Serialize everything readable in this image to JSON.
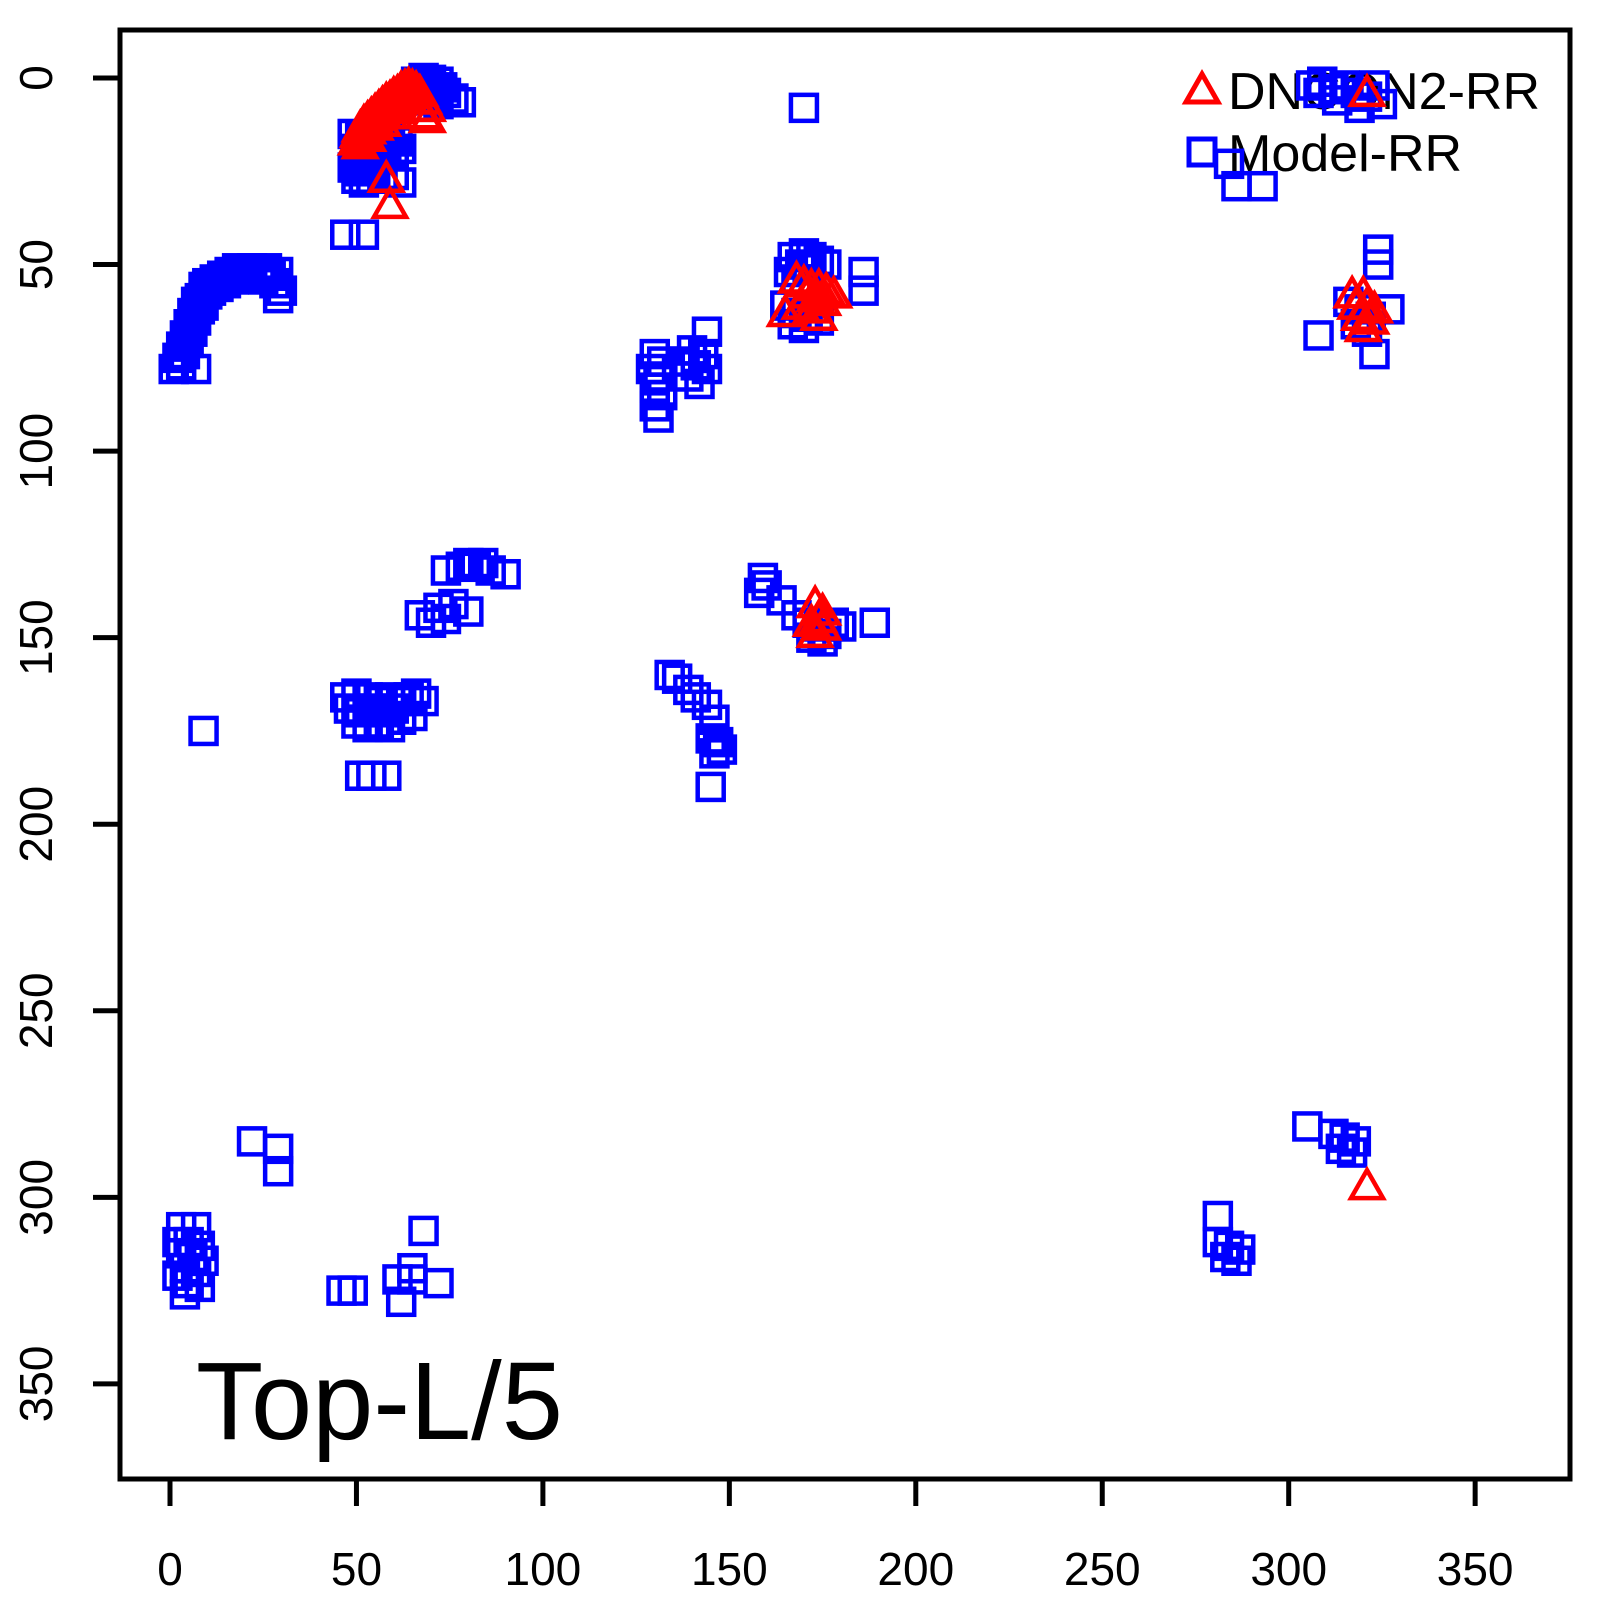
{
  "figure": {
    "background": "#FFFFFF",
    "axis_color": "#000000",
    "text_color": "#000000"
  },
  "chart_data": {
    "type": "scatter",
    "title": "",
    "xlabel": "",
    "ylabel": "",
    "grid": false,
    "x_ticks": [
      0,
      50,
      100,
      150,
      200,
      250,
      300,
      350
    ],
    "y_ticks": [
      0,
      50,
      100,
      150,
      200,
      250,
      300,
      350
    ],
    "xlim": [
      -13,
      375
    ],
    "ylim": [
      375,
      -13
    ],
    "y_axis_inverted": true,
    "annotation": {
      "text": "Top-L/5",
      "position": "bottom-left"
    },
    "legend": {
      "position": "top-right",
      "entries": [
        {
          "label": "DNCON2-RR",
          "marker": "open-triangle",
          "color": "#FF0000"
        },
        {
          "label": "Model-RR",
          "marker": "open-square",
          "color": "#0000FF"
        }
      ]
    },
    "series": [
      {
        "name": "Model-RR",
        "marker": "open-square",
        "color": "#0000FF",
        "marker_size_px": 26,
        "stroke_width_px": 4.5,
        "points": [
          [
            66,
            1
          ],
          [
            68,
            0
          ],
          [
            70,
            0.5
          ],
          [
            72,
            1
          ],
          [
            69,
            2
          ],
          [
            71,
            3
          ],
          [
            73,
            2.5
          ],
          [
            67,
            3.5
          ],
          [
            68,
            5
          ],
          [
            70,
            6
          ],
          [
            74,
            4
          ],
          [
            76,
            5.5
          ],
          [
            78,
            6.5
          ],
          [
            72,
            7
          ],
          [
            49,
            15
          ],
          [
            51,
            16
          ],
          [
            53,
            17
          ],
          [
            55,
            16
          ],
          [
            57,
            15
          ],
          [
            59,
            16
          ],
          [
            61,
            17
          ],
          [
            50,
            19
          ],
          [
            52,
            20
          ],
          [
            54,
            20
          ],
          [
            56,
            19
          ],
          [
            58,
            18
          ],
          [
            60,
            20
          ],
          [
            62,
            19
          ],
          [
            49,
            24
          ],
          [
            51,
            25
          ],
          [
            53,
            24
          ],
          [
            55,
            25
          ],
          [
            57,
            26
          ],
          [
            50,
            27
          ],
          [
            52,
            28
          ],
          [
            54,
            27
          ],
          [
            60,
            26
          ],
          [
            62,
            28
          ],
          [
            47,
            42
          ],
          [
            52,
            42
          ],
          [
            1,
            78
          ],
          [
            3,
            77
          ],
          [
            2,
            75
          ],
          [
            4,
            74
          ],
          [
            3,
            72
          ],
          [
            5,
            71
          ],
          [
            4,
            69
          ],
          [
            6,
            68
          ],
          [
            5,
            66
          ],
          [
            7,
            65
          ],
          [
            6,
            63
          ],
          [
            8,
            62
          ],
          [
            7,
            60
          ],
          [
            9,
            61
          ],
          [
            8,
            59
          ],
          [
            10,
            58
          ],
          [
            9,
            56
          ],
          [
            11,
            57
          ],
          [
            10,
            55
          ],
          [
            12,
            54
          ],
          [
            13,
            56
          ],
          [
            14,
            53
          ],
          [
            15,
            55
          ],
          [
            16,
            52
          ],
          [
            17,
            54
          ],
          [
            18,
            51
          ],
          [
            19,
            53
          ],
          [
            20,
            52
          ],
          [
            22,
            51
          ],
          [
            24,
            52
          ],
          [
            26,
            51
          ],
          [
            25,
            54
          ],
          [
            27,
            53
          ],
          [
            29,
            52
          ],
          [
            28,
            55
          ],
          [
            30,
            57
          ],
          [
            29,
            59
          ],
          [
            7,
            78
          ],
          [
            130,
            74
          ],
          [
            132,
            76
          ],
          [
            129,
            78
          ],
          [
            131,
            80
          ],
          [
            130,
            83
          ],
          [
            132,
            85
          ],
          [
            130,
            88
          ],
          [
            131,
            91
          ],
          [
            144,
            68
          ],
          [
            140,
            73
          ],
          [
            143,
            74
          ],
          [
            138,
            76
          ],
          [
            141,
            77
          ],
          [
            144,
            78
          ],
          [
            139,
            80
          ],
          [
            142,
            82
          ],
          [
            167,
            48
          ],
          [
            170,
            47
          ],
          [
            172,
            48
          ],
          [
            174,
            49
          ],
          [
            176,
            50
          ],
          [
            169,
            50
          ],
          [
            171,
            51
          ],
          [
            166,
            52
          ],
          [
            168,
            54
          ],
          [
            165,
            61
          ],
          [
            168,
            63
          ],
          [
            171,
            64
          ],
          [
            174,
            65
          ],
          [
            167,
            66
          ],
          [
            170,
            67
          ],
          [
            186,
            52
          ],
          [
            186,
            57
          ],
          [
            170,
            8
          ],
          [
            306,
            2
          ],
          [
            309,
            1
          ],
          [
            312,
            3
          ],
          [
            315,
            2
          ],
          [
            318,
            4
          ],
          [
            321,
            5
          ],
          [
            323,
            2
          ],
          [
            325,
            7
          ],
          [
            319,
            8
          ],
          [
            313,
            6
          ],
          [
            308,
            4
          ],
          [
            284,
            23
          ],
          [
            286,
            29
          ],
          [
            293,
            29
          ],
          [
            324,
            46
          ],
          [
            324,
            50
          ],
          [
            316,
            60
          ],
          [
            319,
            62
          ],
          [
            322,
            64
          ],
          [
            318,
            66
          ],
          [
            321,
            68
          ],
          [
            327,
            62
          ],
          [
            308,
            69
          ],
          [
            323,
            74
          ],
          [
            74,
            132
          ],
          [
            78,
            131
          ],
          [
            82,
            131
          ],
          [
            86,
            132
          ],
          [
            90,
            133
          ],
          [
            84,
            130
          ],
          [
            80,
            130
          ],
          [
            67,
            144
          ],
          [
            72,
            142
          ],
          [
            76,
            141
          ],
          [
            80,
            143
          ],
          [
            74,
            145
          ],
          [
            70,
            146
          ],
          [
            159,
            134
          ],
          [
            160,
            136
          ],
          [
            158,
            138
          ],
          [
            164,
            140
          ],
          [
            168,
            144
          ],
          [
            171,
            146
          ],
          [
            174,
            147
          ],
          [
            176,
            149
          ],
          [
            178,
            146
          ],
          [
            180,
            147
          ],
          [
            172,
            150
          ],
          [
            175,
            151
          ],
          [
            189,
            146
          ],
          [
            47,
            166
          ],
          [
            50,
            165
          ],
          [
            53,
            166
          ],
          [
            56,
            167
          ],
          [
            59,
            166
          ],
          [
            48,
            169
          ],
          [
            51,
            170
          ],
          [
            54,
            169
          ],
          [
            57,
            170
          ],
          [
            60,
            169
          ],
          [
            62,
            167
          ],
          [
            64,
            166
          ],
          [
            66,
            165
          ],
          [
            68,
            167
          ],
          [
            50,
            173
          ],
          [
            53,
            174
          ],
          [
            56,
            173
          ],
          [
            59,
            174
          ],
          [
            62,
            172
          ],
          [
            65,
            171
          ],
          [
            9,
            175
          ],
          [
            51,
            187
          ],
          [
            54,
            187
          ],
          [
            58,
            187
          ],
          [
            134,
            160
          ],
          [
            136,
            161
          ],
          [
            139,
            164
          ],
          [
            141,
            166
          ],
          [
            144,
            168
          ],
          [
            146,
            172
          ],
          [
            145,
            177
          ],
          [
            147,
            178
          ],
          [
            148,
            180
          ],
          [
            146,
            181
          ],
          [
            145,
            190
          ],
          [
            22,
            285
          ],
          [
            29,
            287
          ],
          [
            29,
            293
          ],
          [
            3,
            308
          ],
          [
            7,
            308
          ],
          [
            2,
            312
          ],
          [
            5,
            312
          ],
          [
            8,
            313
          ],
          [
            3,
            315
          ],
          [
            6,
            316
          ],
          [
            9,
            317
          ],
          [
            4,
            319
          ],
          [
            7,
            320
          ],
          [
            2,
            321
          ],
          [
            5,
            323
          ],
          [
            8,
            324
          ],
          [
            4,
            326
          ],
          [
            68,
            309
          ],
          [
            46,
            325
          ],
          [
            49,
            325
          ],
          [
            65,
            319
          ],
          [
            61,
            322
          ],
          [
            65,
            322
          ],
          [
            62,
            328
          ],
          [
            72,
            323
          ],
          [
            305,
            281
          ],
          [
            312,
            283
          ],
          [
            315,
            284
          ],
          [
            318,
            285
          ],
          [
            314,
            287
          ],
          [
            317,
            288
          ],
          [
            281,
            305
          ],
          [
            281,
            312
          ],
          [
            284,
            313
          ],
          [
            287,
            314
          ],
          [
            283,
            316
          ],
          [
            286,
            317
          ]
        ]
      },
      {
        "name": "DNCON2-RR",
        "marker": "open-triangle",
        "color": "#FF0000",
        "marker_size_px": 32,
        "stroke_width_px": 4.5,
        "points": [
          [
            50,
            17
          ],
          [
            50.5,
            15
          ],
          [
            51,
            16
          ],
          [
            51,
            13.5
          ],
          [
            51.5,
            14.5
          ],
          [
            52,
            12
          ],
          [
            52,
            15.5
          ],
          [
            52.5,
            13
          ],
          [
            53,
            11
          ],
          [
            53,
            14
          ],
          [
            54,
            10
          ],
          [
            54,
            12.5
          ],
          [
            55,
            9
          ],
          [
            55,
            11.5
          ],
          [
            56,
            8
          ],
          [
            56,
            10.5
          ],
          [
            57,
            7
          ],
          [
            57,
            9.5
          ],
          [
            58,
            6
          ],
          [
            58,
            8.5
          ],
          [
            59,
            5.5
          ],
          [
            59,
            7.5
          ],
          [
            60,
            4.5
          ],
          [
            60,
            7
          ],
          [
            61,
            4
          ],
          [
            61,
            6
          ],
          [
            62,
            3
          ],
          [
            62,
            5.5
          ],
          [
            63,
            2.5
          ],
          [
            63,
            5
          ],
          [
            64,
            2
          ],
          [
            64,
            4.5
          ],
          [
            65,
            2.5
          ],
          [
            65,
            4.5
          ],
          [
            66,
            3
          ],
          [
            66,
            6
          ],
          [
            67,
            4
          ],
          [
            67,
            8
          ],
          [
            68,
            6
          ],
          [
            68,
            10
          ],
          [
            69,
            8
          ],
          [
            69,
            11
          ],
          [
            55,
            13
          ],
          [
            53,
            16
          ],
          [
            51,
            18
          ],
          [
            57,
            12
          ],
          [
            59,
            10
          ],
          [
            61,
            8.5
          ],
          [
            58,
            27
          ],
          [
            59,
            34
          ],
          [
            168,
            54
          ],
          [
            170,
            55
          ],
          [
            172,
            56
          ],
          [
            174,
            56
          ],
          [
            176,
            57
          ],
          [
            178,
            58
          ],
          [
            171,
            58
          ],
          [
            173,
            59
          ],
          [
            175,
            60
          ],
          [
            169,
            61
          ],
          [
            172,
            62
          ],
          [
            165,
            63
          ],
          [
            174,
            64
          ],
          [
            173,
            141
          ],
          [
            175,
            143
          ],
          [
            174,
            145
          ],
          [
            172,
            146
          ],
          [
            175,
            147
          ],
          [
            173,
            149
          ],
          [
            317,
            58
          ],
          [
            320,
            58
          ],
          [
            318,
            61
          ],
          [
            321,
            61
          ],
          [
            323,
            62
          ],
          [
            319,
            64
          ],
          [
            322,
            65
          ],
          [
            320,
            67
          ],
          [
            321,
            4
          ],
          [
            321,
            297
          ]
        ]
      }
    ]
  }
}
